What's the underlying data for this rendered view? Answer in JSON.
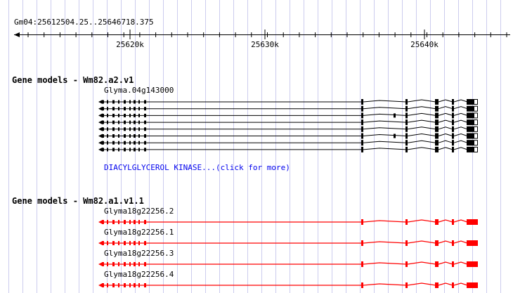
{
  "view": {
    "range_label": "Gm04:25612504.25..25646718.375",
    "start": 25612504.25,
    "end": 25646718.375,
    "ruler_labels": [
      "25620k",
      "25630k",
      "25640k"
    ],
    "colors": {
      "grid": "#ccccee",
      "background": "#ffffff",
      "a2_glyph": "#000000",
      "a1_glyph": "#ff0000",
      "link": "#0000ee"
    }
  },
  "tracks": [
    {
      "title": "Gene models - Wm82.a2.v1",
      "gene_label": "Glyma.04g143000",
      "description_link": "DIACYLGLYCEROL KINASE...(click for more)",
      "transcript_count": 8
    },
    {
      "title": "Gene models - Wm82.a1.v1.1",
      "transcripts": [
        {
          "label": "Glyma18g22256.2"
        },
        {
          "label": "Glyma18g22256.1"
        },
        {
          "label": "Glyma18g22256.3"
        },
        {
          "label": "Glyma18g22256.4"
        }
      ]
    }
  ]
}
